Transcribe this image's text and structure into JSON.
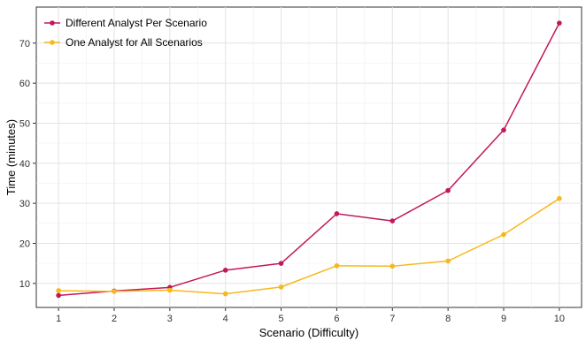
{
  "chart_data": {
    "type": "line",
    "xlabel": "Scenario (Difficulty)",
    "ylabel": "Time (minutes)",
    "x": [
      1,
      2,
      3,
      4,
      5,
      6,
      7,
      8,
      9,
      10
    ],
    "xlim": [
      0.6,
      10.4
    ],
    "ylim": [
      4.0,
      79.0
    ],
    "x_ticks": [
      "1",
      "2",
      "3",
      "4",
      "5",
      "6",
      "7",
      "8",
      "9",
      "10"
    ],
    "y_ticks": [
      10,
      20,
      30,
      40,
      50,
      60,
      70
    ],
    "grid": true,
    "legend_position": "top-left",
    "series": [
      {
        "name": "Different Analyst Per Scenario",
        "color": "#c2185b",
        "values": [
          7.0,
          8.1,
          9.0,
          13.3,
          15.0,
          27.4,
          25.6,
          33.2,
          48.3,
          75.0
        ]
      },
      {
        "name": "One Analyst for All Scenarios",
        "color": "#f5b91c",
        "values": [
          8.2,
          8.0,
          8.3,
          7.4,
          9.1,
          14.4,
          14.3,
          15.6,
          22.2,
          31.2
        ]
      }
    ]
  }
}
